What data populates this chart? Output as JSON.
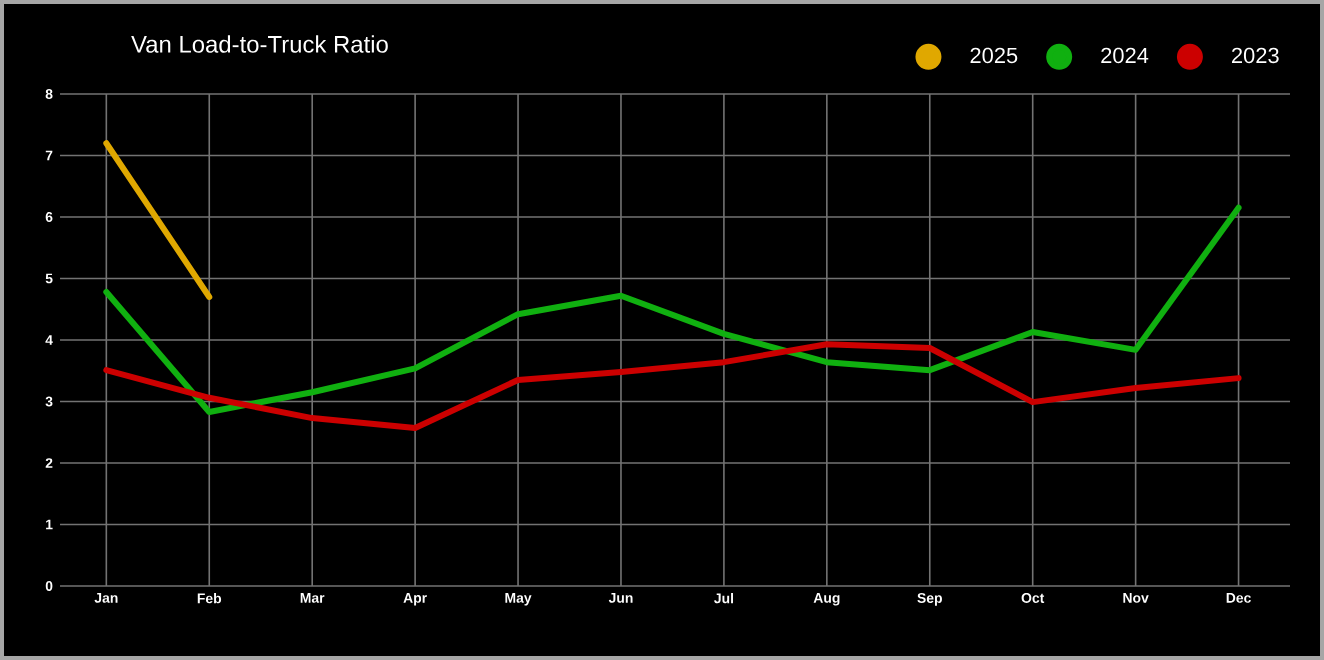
{
  "chart_data": {
    "type": "line",
    "title": "Van Load-to-Truck Ratio",
    "categories": [
      "Jan",
      "Feb",
      "Mar",
      "Apr",
      "May",
      "Jun",
      "Jul",
      "Aug",
      "Sep",
      "Oct",
      "Nov",
      "Dec"
    ],
    "series": [
      {
        "name": "2025",
        "color": "#e0a800",
        "values": [
          7.2,
          4.7,
          null,
          null,
          null,
          null,
          null,
          null,
          null,
          null,
          null,
          null
        ]
      },
      {
        "name": "2024",
        "color": "#10b010",
        "values": [
          4.78,
          2.83,
          3.15,
          3.54,
          4.42,
          4.72,
          4.1,
          3.64,
          3.51,
          4.13,
          3.84,
          6.15
        ]
      },
      {
        "name": "2023",
        "color": "#cc0000",
        "values": [
          3.51,
          3.06,
          2.73,
          2.57,
          3.35,
          3.48,
          3.64,
          3.93,
          3.87,
          2.99,
          3.22,
          3.38
        ]
      }
    ],
    "ylim": [
      0,
      8
    ],
    "yticks": [
      0,
      1,
      2,
      3,
      4,
      5,
      6,
      7,
      8
    ],
    "grid": true,
    "legend": "top right",
    "marker": "none",
    "line_style": "solid"
  }
}
